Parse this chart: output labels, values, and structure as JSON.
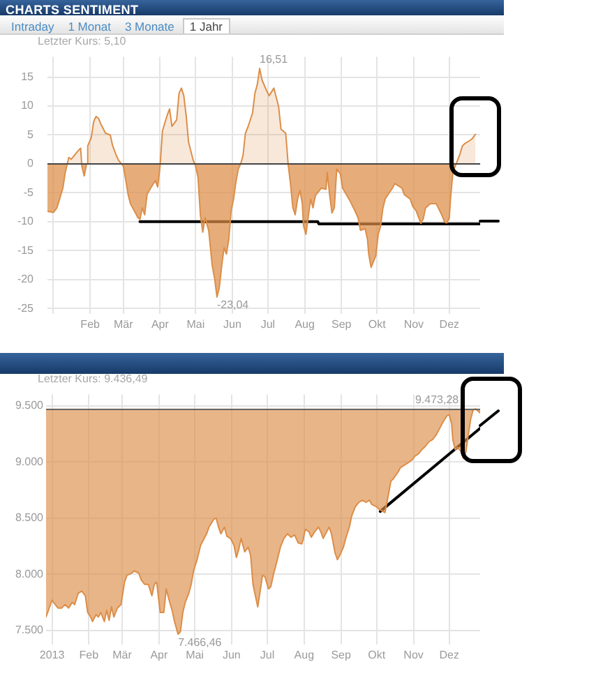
{
  "chart_data": [
    {
      "type": "area",
      "title": "CHARTS SENTIMENT",
      "subtitle": "Letzter Kurs: 5,10",
      "annotations": [
        "Intraday",
        "1 Monat",
        "3 Monate",
        "1 Jahr",
        {
          "text": "16,51",
          "x": "2013-06-24",
          "y": 16.51
        },
        {
          "text": "-23,04",
          "x": "2013-05-19",
          "y": -23.04
        }
      ],
      "x": [
        "2012-12-27",
        "2013-01-01",
        "2013-01-04",
        "2013-01-09",
        "2013-01-11",
        "2013-01-14",
        "2013-01-16",
        "2013-01-22",
        "2013-01-24",
        "2013-01-25",
        "2013-01-27",
        "2013-01-29",
        "2013-01-30",
        "2013-02-02",
        "2013-02-04",
        "2013-02-06",
        "2013-02-08",
        "2013-02-10",
        "2013-02-14",
        "2013-02-18",
        "2013-02-20",
        "2013-02-23",
        "2013-02-25",
        "2013-03-01",
        "2013-03-03",
        "2013-03-05",
        "2013-03-07",
        "2013-03-11",
        "2013-03-13",
        "2013-03-15",
        "2013-03-17",
        "2013-03-19",
        "2013-03-21",
        "2013-03-24",
        "2013-03-28",
        "2013-03-30",
        "2013-04-01",
        "2013-04-03",
        "2013-04-07",
        "2013-04-09",
        "2013-04-11",
        "2013-04-15",
        "2013-04-17",
        "2013-04-19",
        "2013-04-21",
        "2013-04-23",
        "2013-04-25",
        "2013-04-29",
        "2013-05-01",
        "2013-05-03",
        "2013-05-05",
        "2013-05-07",
        "2013-05-09",
        "2013-05-12",
        "2013-05-15",
        "2013-05-17",
        "2013-05-19",
        "2013-05-21",
        "2013-05-23",
        "2013-05-25",
        "2013-05-27",
        "2013-05-29",
        "2013-05-31",
        "2013-06-02",
        "2013-06-04",
        "2013-06-06",
        "2013-06-08",
        "2013-06-10",
        "2013-06-12",
        "2013-06-14",
        "2013-06-18",
        "2013-06-20",
        "2013-06-22",
        "2013-06-24",
        "2013-06-26",
        "2013-06-30",
        "2013-07-02",
        "2013-07-06",
        "2013-07-10",
        "2013-07-12",
        "2013-07-16",
        "2013-07-18",
        "2013-07-20",
        "2013-07-22",
        "2013-07-24",
        "2013-07-26",
        "2013-07-28",
        "2013-07-30",
        "2013-07-31",
        "2013-08-02",
        "2013-08-04",
        "2013-08-06",
        "2013-08-08",
        "2013-08-10",
        "2013-08-15",
        "2013-08-19",
        "2013-08-20",
        "2013-08-22",
        "2013-08-24",
        "2013-08-26",
        "2013-08-28",
        "2013-08-31",
        "2013-09-02",
        "2013-09-08",
        "2013-09-13",
        "2013-09-15",
        "2013-09-17",
        "2013-09-21",
        "2013-09-23",
        "2013-09-24",
        "2013-09-26",
        "2013-09-30",
        "2013-10-02",
        "2013-10-04",
        "2013-10-06",
        "2013-10-08",
        "2013-10-14",
        "2013-10-16",
        "2013-10-22",
        "2013-10-24",
        "2013-10-29",
        "2013-10-31",
        "2013-11-03",
        "2013-11-05",
        "2013-11-07",
        "2013-11-09",
        "2013-11-11",
        "2013-11-15",
        "2013-11-20",
        "2013-11-25",
        "2013-11-27",
        "2013-11-29",
        "2013-12-01",
        "2013-12-02",
        "2013-12-04",
        "2013-12-06",
        "2013-12-10",
        "2013-12-12",
        "2013-12-14",
        "2013-12-18",
        "2013-12-20",
        "2013-12-23"
      ],
      "series": [
        {
          "color": "#dc8e48",
          "values": [
            -8.2,
            -8.4,
            -7.6,
            -4.2,
            -1.5,
            1.1,
            0.8,
            2.3,
            2.7,
            -0.4,
            -2.1,
            0,
            3.1,
            4.6,
            7.3,
            8.2,
            7.9,
            6.9,
            5.3,
            5.0,
            3.1,
            1.5,
            0.6,
            -0.4,
            -2.7,
            -5.3,
            -6.9,
            -8.4,
            -9.2,
            -9.6,
            -7.6,
            -8.8,
            -5.3,
            -4.2,
            -2.9,
            -4.0,
            -0.4,
            5.7,
            8.4,
            9.5,
            6.5,
            7.6,
            12.2,
            13.1,
            11.8,
            8.4,
            3.8,
            0.6,
            -0.4,
            -2.3,
            -8.8,
            -11.8,
            -9.3,
            -11.5,
            -17.6,
            -19.8,
            -23.04,
            -21.4,
            -17.6,
            -14.5,
            -15.6,
            -13.0,
            -8.0,
            -6.1,
            -3.1,
            -0.9,
            0,
            1.5,
            5.3,
            6.3,
            8.8,
            12.2,
            13.7,
            16.51,
            14.5,
            12.6,
            11.8,
            13.1,
            9.9,
            6.0,
            5.3,
            0,
            -3.4,
            -7.6,
            -8.8,
            -6.1,
            -4.6,
            -6.9,
            -10.7,
            -12.2,
            -9.2,
            -6.1,
            -7.6,
            -5.5,
            -4.2,
            -4.4,
            -1.5,
            -5.3,
            -8.5,
            -7.6,
            -0.9,
            -1.7,
            -4.2,
            -6.3,
            -8.4,
            -9.3,
            -11.5,
            -11.2,
            -13.1,
            -15.6,
            -17.9,
            -15.9,
            -12.2,
            -10.8,
            -7.6,
            -6.0,
            -4.2,
            -3.4,
            -4.2,
            -5.3,
            -6.1,
            -7.3,
            -8.1,
            -9.2,
            -10.3,
            -9.5,
            -7.6,
            -6.9,
            -6.9,
            -9.0,
            -10.1,
            -10.2,
            -9.3,
            -6.1,
            -1.5,
            -0.4,
            1.7,
            3.1,
            3.5,
            4.0,
            4.3,
            5.1
          ]
        },
        {
          "type": "line",
          "color": "#000000",
          "x": [
            "2013-03-15",
            "2013-08-12",
            "2013-08-13",
            "2013-12-27"
          ],
          "values": [
            -10,
            -10,
            -10.4,
            -10.4
          ]
        }
      ],
      "xlim": [
        "2012-12-27",
        "2013-12-27"
      ],
      "xticks": [
        {
          "value": "2013-01-01",
          "label": null
        },
        {
          "value": "2013-02-01",
          "label": "Feb"
        },
        {
          "value": "2013-03-01",
          "label": "Mär"
        },
        {
          "value": "2013-04-01",
          "label": "Apr"
        },
        {
          "value": "2013-05-01",
          "label": "Mai"
        },
        {
          "value": "2013-06-01",
          "label": "Jun"
        },
        {
          "value": "2013-07-01",
          "label": "Jul"
        },
        {
          "value": "2013-08-01",
          "label": "Aug"
        },
        {
          "value": "2013-09-01",
          "label": "Sep"
        },
        {
          "value": "2013-10-01",
          "label": "Okt"
        },
        {
          "value": "2013-11-01",
          "label": "Nov"
        },
        {
          "value": "2013-12-01",
          "label": "Dez"
        }
      ],
      "ylim": [
        -26,
        18.5
      ],
      "yticks": [
        -25,
        -20,
        -15,
        -10,
        -5,
        0,
        5,
        10,
        15
      ],
      "grid": true,
      "ref_lines": [
        {
          "axis": "y",
          "value": 0,
          "color": "#444444"
        }
      ]
    },
    {
      "type": "line",
      "subtitle": "Letzter Kurs: 9.436,49",
      "annotations": [
        {
          "text": "9.473,28",
          "x": "2013-12-23",
          "y": 9473.28
        },
        {
          "text": "7.466,46",
          "x": "2013-04-17",
          "y": 7466.46
        }
      ],
      "x": [
        "2012-12-27",
        "2013-01-01",
        "2013-01-03",
        "2013-01-06",
        "2013-01-09",
        "2013-01-12",
        "2013-01-15",
        "2013-01-18",
        "2013-01-20",
        "2013-01-23",
        "2013-01-26",
        "2013-01-29",
        "2013-01-31",
        "2013-02-02",
        "2013-02-04",
        "2013-02-07",
        "2013-02-09",
        "2013-02-11",
        "2013-02-14",
        "2013-02-16",
        "2013-02-18",
        "2013-02-20",
        "2013-02-22",
        "2013-02-25",
        "2013-02-28",
        "2013-03-03",
        "2013-03-05",
        "2013-03-09",
        "2013-03-11",
        "2013-03-15",
        "2013-03-17",
        "2013-03-20",
        "2013-03-23",
        "2013-03-26",
        "2013-03-28",
        "2013-03-30",
        "2013-04-02",
        "2013-04-05",
        "2013-04-07",
        "2013-04-10",
        "2013-04-12",
        "2013-04-14",
        "2013-04-17",
        "2013-04-19",
        "2013-04-21",
        "2013-04-23",
        "2013-04-26",
        "2013-04-28",
        "2013-04-30",
        "2013-05-03",
        "2013-05-06",
        "2013-05-08",
        "2013-05-11",
        "2013-05-13",
        "2013-05-17",
        "2013-05-19",
        "2013-05-21",
        "2013-05-23",
        "2013-05-26",
        "2013-05-28",
        "2013-05-31",
        "2013-06-03",
        "2013-06-05",
        "2013-06-07",
        "2013-06-09",
        "2013-06-12",
        "2013-06-15",
        "2013-06-17",
        "2013-06-19",
        "2013-06-21",
        "2013-06-23",
        "2013-06-25",
        "2013-06-27",
        "2013-06-29",
        "2013-07-02",
        "2013-07-04",
        "2013-07-06",
        "2013-07-09",
        "2013-07-12",
        "2013-07-15",
        "2013-07-18",
        "2013-07-21",
        "2013-07-24",
        "2013-07-27",
        "2013-07-30",
        "2013-07-31",
        "2013-08-02",
        "2013-08-05",
        "2013-08-07",
        "2013-08-10",
        "2013-08-13",
        "2013-08-15",
        "2013-08-17",
        "2013-08-20",
        "2013-08-22",
        "2013-08-24",
        "2013-08-27",
        "2013-08-29",
        "2013-08-31",
        "2013-09-03",
        "2013-09-05",
        "2013-09-08",
        "2013-09-10",
        "2013-09-13",
        "2013-09-16",
        "2013-09-19",
        "2013-09-22",
        "2013-09-25",
        "2013-09-27",
        "2013-10-01",
        "2013-10-03",
        "2013-10-06",
        "2013-10-08",
        "2013-10-10",
        "2013-10-13",
        "2013-10-15",
        "2013-10-19",
        "2013-10-21",
        "2013-10-24",
        "2013-10-27",
        "2013-10-31",
        "2013-11-02",
        "2013-11-05",
        "2013-11-08",
        "2013-11-11",
        "2013-11-14",
        "2013-11-17",
        "2013-11-20",
        "2013-11-23",
        "2013-11-26",
        "2013-11-29",
        "2013-12-01",
        "2013-12-03",
        "2013-12-04",
        "2013-12-06",
        "2013-12-08",
        "2013-12-11",
        "2013-12-13",
        "2013-12-15",
        "2013-12-17",
        "2013-12-19",
        "2013-12-21",
        "2013-12-23",
        "2013-12-27"
      ],
      "series": [
        {
          "color": "#dc8e48",
          "values": [
            7620,
            7770,
            7740,
            7700,
            7700,
            7730,
            7700,
            7750,
            7730,
            7830,
            7850,
            7810,
            7660,
            7630,
            7580,
            7640,
            7620,
            7660,
            7580,
            7680,
            7590,
            7710,
            7620,
            7700,
            7730,
            7930,
            7990,
            8010,
            8030,
            8010,
            7950,
            7910,
            7910,
            7810,
            7910,
            7930,
            7660,
            7660,
            7870,
            7750,
            7680,
            7580,
            7466.46,
            7490,
            7660,
            7750,
            7830,
            7910,
            8030,
            8130,
            8260,
            8300,
            8360,
            8420,
            8490,
            8500,
            8420,
            8360,
            8420,
            8340,
            8320,
            8260,
            8150,
            8220,
            8320,
            8200,
            8240,
            8170,
            7910,
            7810,
            7710,
            7850,
            7990,
            7980,
            7870,
            7890,
            7990,
            8110,
            8240,
            8320,
            8360,
            8330,
            8350,
            8280,
            8270,
            8300,
            8400,
            8380,
            8330,
            8380,
            8420,
            8380,
            8320,
            8380,
            8420,
            8360,
            8190,
            8130,
            8170,
            8240,
            8320,
            8420,
            8520,
            8600,
            8640,
            8660,
            8640,
            8660,
            8620,
            8600,
            8580,
            8560,
            8550,
            8660,
            8830,
            8850,
            8910,
            8950,
            8970,
            8990,
            9020,
            9050,
            9070,
            9110,
            9140,
            9180,
            9200,
            9240,
            9300,
            9360,
            9410,
            9420,
            9340,
            9200,
            9110,
            9130,
            9090,
            9030,
            9090,
            9240,
            9380,
            9460,
            9473.28,
            9436.49
          ],
          "lower": [
            7620,
            7770,
            7740,
            7700,
            7700,
            7730,
            7700,
            7750,
            7730,
            7830,
            7850,
            7810,
            7660,
            7630,
            7580,
            7640,
            7620,
            7660,
            7580,
            7680,
            7590,
            7710,
            7620,
            7700,
            7730,
            7930,
            7990,
            8010,
            8030,
            8010,
            7950,
            7910,
            7910,
            7810,
            7910,
            7930,
            7660,
            7660,
            7870,
            7750,
            7680,
            7580,
            7466.46,
            7490,
            7660,
            7750,
            7830,
            7910,
            8030,
            8130,
            8260,
            8300,
            8360,
            8420,
            8490,
            8500,
            8420,
            8360,
            8420,
            8340,
            8320,
            8260,
            8150,
            8220,
            8320,
            8200,
            8240,
            8170,
            7910,
            7810,
            7710,
            7850,
            7990,
            7980,
            7870,
            7890,
            7990,
            8110,
            8240,
            8320,
            8360,
            8330,
            8350,
            8280,
            8270,
            8300,
            8400,
            8380,
            8330,
            8380,
            8420,
            8380,
            8320,
            8380,
            8420,
            8360,
            8190,
            8130,
            8170,
            8240,
            8320,
            8420,
            8520,
            8600,
            8640,
            8660,
            8640,
            8660,
            8620,
            8600,
            8580,
            8560,
            8550,
            8660,
            8830,
            8850,
            8910,
            8950,
            8970,
            8990,
            9020,
            9050,
            9070,
            9110,
            9140,
            9180,
            9200,
            9240,
            9300,
            9360,
            9410,
            9420,
            9340,
            9200,
            9110,
            9130,
            9090,
            9030,
            9090,
            9240,
            9380,
            9460,
            9473.28,
            9436.49
          ],
          "upper": [
            9475,
            9475,
            9475,
            9475,
            9475,
            9475,
            9475,
            9475,
            9475,
            9475,
            9475,
            9475,
            9475,
            9475,
            9475,
            9475,
            9475,
            9475,
            9475,
            9475,
            9475,
            9475,
            9475,
            9475,
            9475,
            9475,
            9475,
            9475,
            9475,
            9475,
            9475,
            9475,
            9475,
            9475,
            9475,
            9475,
            9475,
            9475,
            9475,
            9475,
            9475,
            9475,
            9475,
            9475,
            9475,
            9475,
            9475,
            9475,
            9475,
            9475,
            9475,
            9475,
            9475,
            9475,
            9475,
            9475,
            9475,
            9475,
            9475,
            9475,
            9475,
            9475,
            9475,
            9475,
            9475,
            9475,
            9475,
            9475,
            9475,
            9475,
            9475,
            9475,
            9475,
            9475,
            9475,
            9475,
            9475,
            9475,
            9475,
            9475,
            9475,
            9475,
            9475,
            9475,
            9475,
            9475,
            9475,
            9475,
            9475,
            9475,
            9475,
            9475,
            9475,
            9475,
            9475,
            9475,
            9475,
            9475,
            9475,
            9475,
            9475,
            9475,
            9475,
            9475,
            9475,
            9475,
            9475,
            9475,
            9475,
            9475,
            9475,
            9475,
            9475,
            9475,
            9475,
            9475,
            9475,
            9475,
            9475,
            9475,
            9475,
            9475,
            9475,
            9475,
            9475,
            9475,
            9475,
            9475,
            9475,
            9475,
            9475,
            9475,
            9475,
            9475,
            9475,
            9475,
            9475,
            9475,
            9475,
            9475,
            9475,
            9475,
            9475,
            9475
          ]
        },
        {
          "type": "line",
          "color": "#000000",
          "x": [
            "2013-10-04",
            "2013-12-27"
          ],
          "values": [
            8560,
            9300
          ]
        }
      ],
      "xlim": [
        "2012-12-27",
        "2013-12-27"
      ],
      "xticks": [
        {
          "value": "2013-01-01",
          "label": "2013"
        },
        {
          "value": "2013-02-01",
          "label": "Feb"
        },
        {
          "value": "2013-03-01",
          "label": "Mär"
        },
        {
          "value": "2013-04-01",
          "label": "Apr"
        },
        {
          "value": "2013-05-01",
          "label": "Mai"
        },
        {
          "value": "2013-06-01",
          "label": "Jun"
        },
        {
          "value": "2013-07-01",
          "label": "Jul"
        },
        {
          "value": "2013-08-01",
          "label": "Aug"
        },
        {
          "value": "2013-09-01",
          "label": "Sep"
        },
        {
          "value": "2013-10-01",
          "label": "Okt"
        },
        {
          "value": "2013-11-01",
          "label": "Nov"
        },
        {
          "value": "2013-12-01",
          "label": "Dez"
        }
      ],
      "ylim": [
        7375,
        9600
      ],
      "yticks": [
        {
          "value": 7500,
          "label": "7.500"
        },
        {
          "value": 8000,
          "label": "8.000"
        },
        {
          "value": 8500,
          "label": "8.500"
        },
        {
          "value": 9000,
          "label": "9.000"
        },
        {
          "value": 9500,
          "label": "9.500"
        }
      ],
      "grid": true,
      "ref_lines": [
        {
          "axis": "y",
          "value": 9475,
          "color": "#666666"
        }
      ]
    }
  ]
}
